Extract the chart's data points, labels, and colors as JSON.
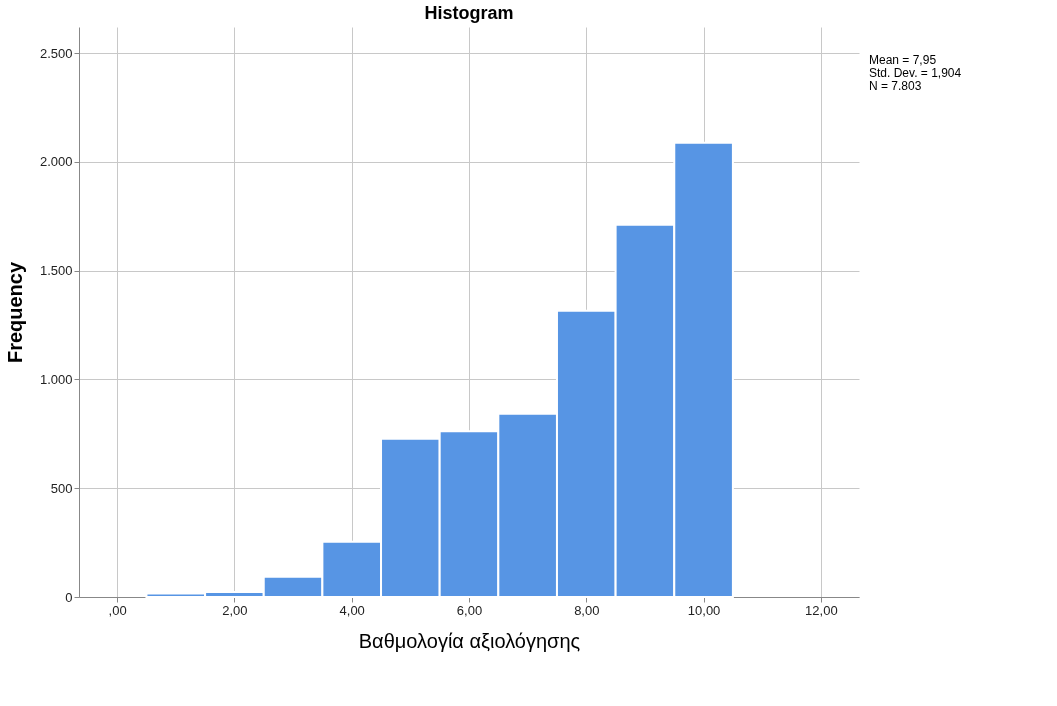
{
  "chart_data": {
    "type": "histogram",
    "title": "Histogram",
    "xlabel": "Βαθμολογία αξιολόγησης",
    "ylabel": "Frequency",
    "bins": [
      0.5,
      1.5,
      2.5,
      3.5,
      4.5,
      5.5,
      6.5,
      7.5,
      8.5,
      9.5,
      10.5
    ],
    "values": [
      16,
      23,
      93,
      254,
      727,
      762,
      842,
      1316,
      1711,
      2088
    ],
    "color": "#5795e4",
    "xlim": [
      -0.65,
      12.65
    ],
    "xticks": [
      {
        "value": 0,
        "label": ",00"
      },
      {
        "value": 2,
        "label": "2,00"
      },
      {
        "value": 4,
        "label": "4,00"
      },
      {
        "value": 6,
        "label": "6,00"
      },
      {
        "value": 8,
        "label": "8,00"
      },
      {
        "value": 10,
        "label": "10,00"
      },
      {
        "value": 12,
        "label": "12,00"
      }
    ],
    "ylim": [
      0,
      2620
    ],
    "yticks": [
      0,
      500,
      {
        "value": 1000,
        "label": "1.000"
      },
      {
        "value": 1500,
        "label": "1.500"
      },
      {
        "value": 2000,
        "label": "2.000"
      },
      {
        "value": 2500,
        "label": "2.500"
      }
    ],
    "grid": true,
    "annotations": [
      "Mean = 7,95",
      "Std. Dev. = 1,904",
      "N = 7.803"
    ]
  }
}
